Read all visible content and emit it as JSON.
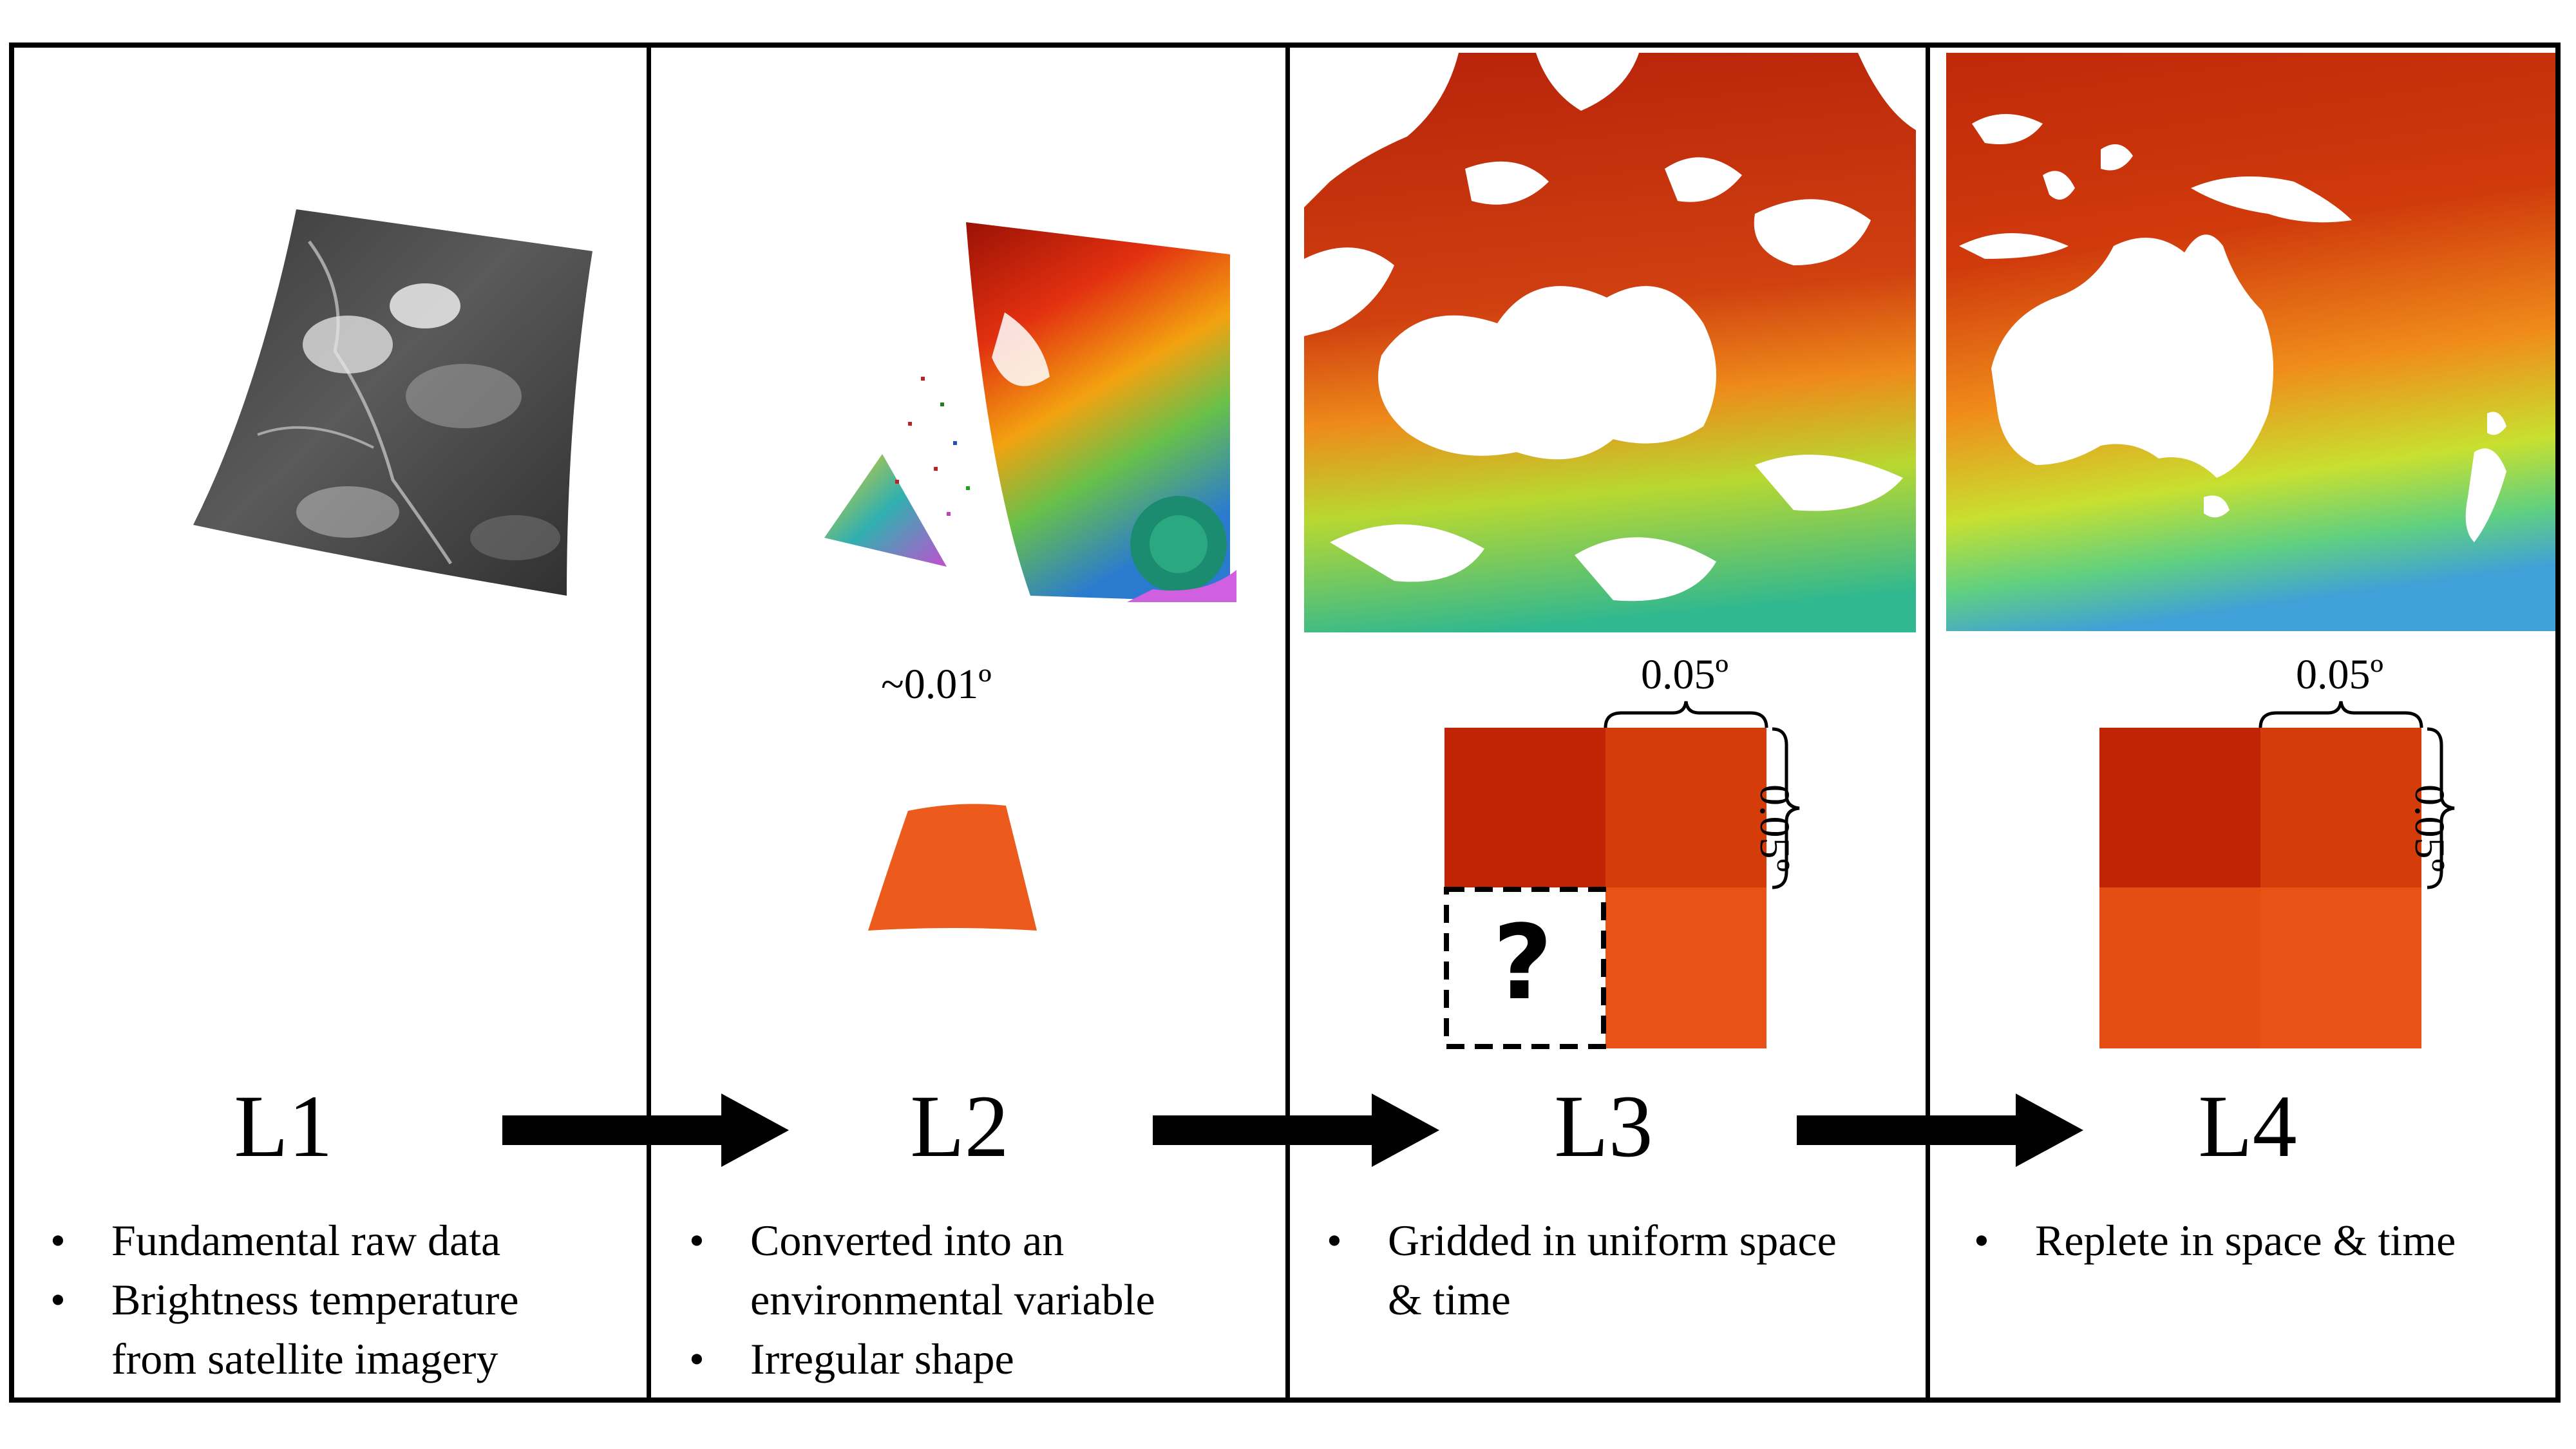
{
  "panels": [
    {
      "level": "L1",
      "bullets": [
        {
          "lines": [
            "Fundamental raw data"
          ]
        },
        {
          "lines": [
            "Brightness temperature",
            "from satellite imagery"
          ]
        }
      ]
    },
    {
      "level": "L2",
      "resolution": "~0.01º",
      "bullets": [
        {
          "lines": [
            "Converted into an",
            "environmental variable"
          ]
        },
        {
          "lines": [
            "Irregular shape"
          ]
        }
      ]
    },
    {
      "level": "L3",
      "resolution_x": "0.05º",
      "resolution_y": "0.05º",
      "missing_marker": "?",
      "bullets": [
        {
          "lines": [
            "Gridded in uniform space",
            "& time"
          ]
        }
      ]
    },
    {
      "level": "L4",
      "resolution_x": "0.05º",
      "resolution_y": "0.05º",
      "bullets": [
        {
          "lines": [
            "Replete in space & time"
          ]
        }
      ]
    }
  ],
  "bullet_glyph": "•",
  "colors": {
    "cell_dark": "#C02405",
    "cell_mid": "#D43D0A",
    "cell_light": "#E85214",
    "l2_shape": "#EC5A1C",
    "ocean_warm": "#C8360C",
    "ocean_cool": "#7BD860",
    "l1_gray": "#4a4a4a"
  }
}
